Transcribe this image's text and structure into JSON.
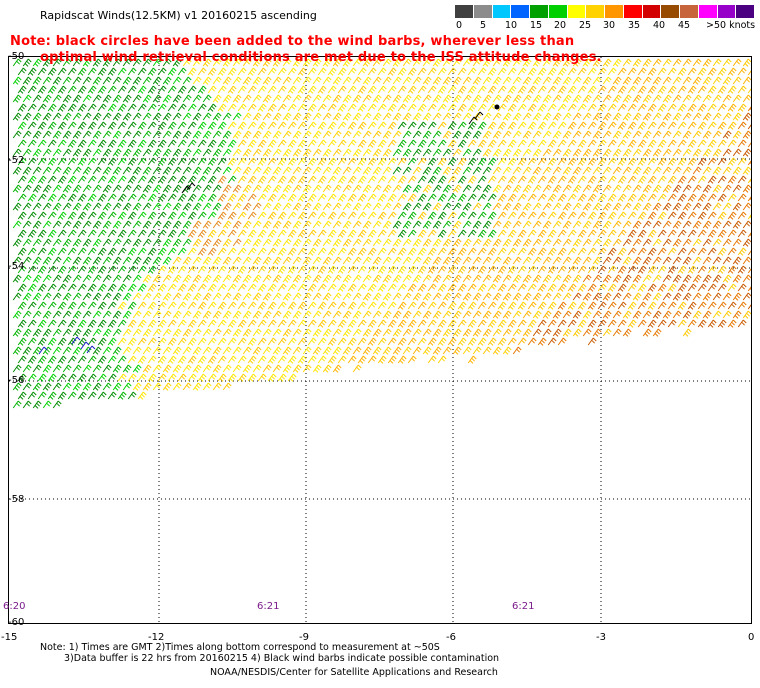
{
  "title": "Rapidscat Winds(12.5KM) v1 20160215 ascending",
  "notice": {
    "line1": "Note: black circles have been added to the wind barbs, wherever less than",
    "line2": "optimal wind retrieval conditions are met due to the ISS attitude changes."
  },
  "legend": {
    "unit": "knots",
    "labels": [
      "0",
      "5",
      "10",
      "15",
      "20",
      "25",
      "30",
      "35",
      "40",
      "45",
      ">50 knots"
    ],
    "colors": [
      "#404040",
      "#8c8c8c",
      "#00c8ff",
      "#0064ff",
      "#00a000",
      "#00d000",
      "#ffff00",
      "#ffd200",
      "#ff9600",
      "#ff0000",
      "#d20000",
      "#964b00",
      "#c8643c",
      "#ff00ff",
      "#9600c8",
      "#4b0082"
    ]
  },
  "map": {
    "latitudes": [
      "-50",
      "-52",
      "-54",
      "-56",
      "-58",
      "-60"
    ],
    "longitudes": [
      "-15",
      "-12",
      "-9",
      "-6",
      "-3",
      "0"
    ],
    "times": [
      "6:20",
      "6:21",
      "6:21"
    ],
    "flagged_point": "black-circle"
  },
  "footer": {
    "note1": "Note: 1) Times are GMT 2)Times along bottom correspond to measurement at ~50S",
    "note2": "3)Data buffer is 22 hrs from 20160215 4) Black wind barbs indicate possible contamination",
    "credit": "NOAA/NESDIS/Center for Satellite Applications and Research"
  }
}
